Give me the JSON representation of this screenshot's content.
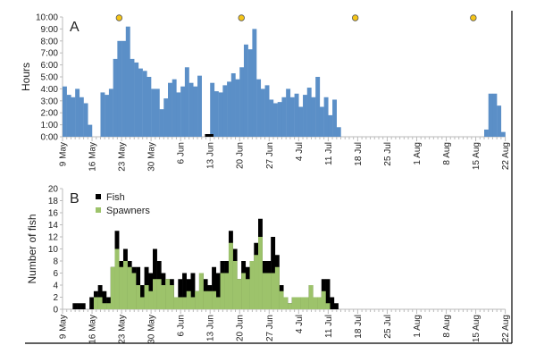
{
  "chart_data": [
    {
      "type": "bar",
      "panel_label": "A",
      "ylabel": "Hours",
      "ylim": [
        0,
        10
      ],
      "yticks": [
        "0:00",
        "1:00",
        "2:00",
        "3:00",
        "4:00",
        "5:00",
        "6:00",
        "7:00",
        "8:00",
        "9:00",
        "10:00"
      ],
      "xticks": [
        "9 May",
        "16 May",
        "23 May",
        "30 May",
        "6 Jun",
        "13 Jun",
        "20 Jun",
        "27 Jun",
        "4 Jul",
        "11 Jul",
        "18 Jul",
        "25 Jul",
        "1 Aug",
        "8 Aug",
        "15 Aug",
        "22 Aug"
      ],
      "x_start": "9 May",
      "x_step_days": 1,
      "bar_color": "#5b8fc7",
      "values": [
        4.2,
        3.5,
        3.3,
        4.0,
        3.3,
        2.8,
        1.0,
        0,
        0,
        3.7,
        3.5,
        4.0,
        6.5,
        8.0,
        8.0,
        9.2,
        6.5,
        6.2,
        5.7,
        5.5,
        5.0,
        4.0,
        4.0,
        2.3,
        3.2,
        4.5,
        4.8,
        3.7,
        4.2,
        5.8,
        4.5,
        4.2,
        5.1,
        0,
        0,
        4.5,
        3.8,
        3.7,
        4.3,
        4.6,
        5.3,
        4.8,
        5.8,
        7.7,
        7.3,
        9.0,
        4.8,
        4.0,
        4.3,
        3.1,
        2.8,
        2.9,
        3.3,
        4.0,
        3.3,
        3.6,
        2.5,
        3.5,
        4.1,
        3.3,
        5.0,
        2.5,
        3.3,
        1.8,
        3.1,
        0.8,
        0,
        0,
        0,
        0,
        0,
        0,
        0,
        0,
        0,
        0,
        0,
        0,
        0,
        0,
        0,
        0,
        0,
        0,
        0,
        0,
        0,
        0,
        0,
        0,
        0,
        0,
        0,
        0,
        0,
        0,
        0,
        0,
        0,
        0,
        0.6,
        3.6,
        3.6,
        2.6,
        0.4
      ],
      "black_marker_dates": [
        "12 Jun"
      ],
      "yellow_marker_dates": [
        "22 May",
        "20 Jun",
        "17 Jul",
        "14 Aug"
      ],
      "marker_color": "#f5c518"
    },
    {
      "type": "bar",
      "panel_label": "B",
      "ylabel": "Number of fish",
      "ylim": [
        0,
        20
      ],
      "yticks": [
        "0",
        "2",
        "4",
        "6",
        "8",
        "10",
        "12",
        "14",
        "16",
        "18",
        "20"
      ],
      "xticks": [
        "9 May",
        "16 May",
        "23 May",
        "30 May",
        "6 Jun",
        "13 Jun",
        "20 Jun",
        "27 Jun",
        "4 Jul",
        "11 Jul",
        "18 Jul",
        "25 Jul",
        "1 Aug",
        "8 Aug",
        "15 Aug",
        "22 Aug"
      ],
      "x_start": "9 May",
      "x_step_days": 1,
      "legend_position": "top-left",
      "series": [
        {
          "name": "Fish",
          "color": "#000000",
          "values": [
            0,
            0,
            1,
            1,
            1,
            0,
            2,
            3,
            4,
            3,
            2,
            7,
            13,
            8,
            10,
            8,
            7,
            7,
            4,
            7,
            6,
            10,
            8,
            6,
            5,
            5,
            2,
            5,
            6,
            5,
            6,
            3,
            6,
            5,
            4,
            7,
            6,
            8,
            8,
            13,
            10,
            5,
            8,
            7,
            8,
            11,
            15,
            8,
            8,
            12,
            9,
            4,
            2,
            1,
            2,
            2,
            2,
            2,
            4,
            2,
            2,
            5,
            5,
            2,
            1
          ]
        },
        {
          "name": "Spawners",
          "color": "#9dc36b",
          "values": [
            0,
            0,
            0,
            0,
            0,
            0,
            0,
            2,
            2,
            1,
            1,
            7,
            10,
            7,
            8,
            7,
            6,
            4,
            2,
            4,
            3,
            5,
            5,
            4,
            5,
            4,
            2,
            2,
            2,
            3,
            2,
            3,
            6,
            3,
            3,
            3,
            2,
            6,
            6,
            11,
            8,
            5,
            6,
            5,
            8,
            9,
            12,
            6,
            6,
            6,
            7,
            3,
            2,
            1,
            2,
            2,
            2,
            2,
            4,
            2,
            2,
            3,
            1,
            0,
            0
          ]
        }
      ]
    }
  ]
}
